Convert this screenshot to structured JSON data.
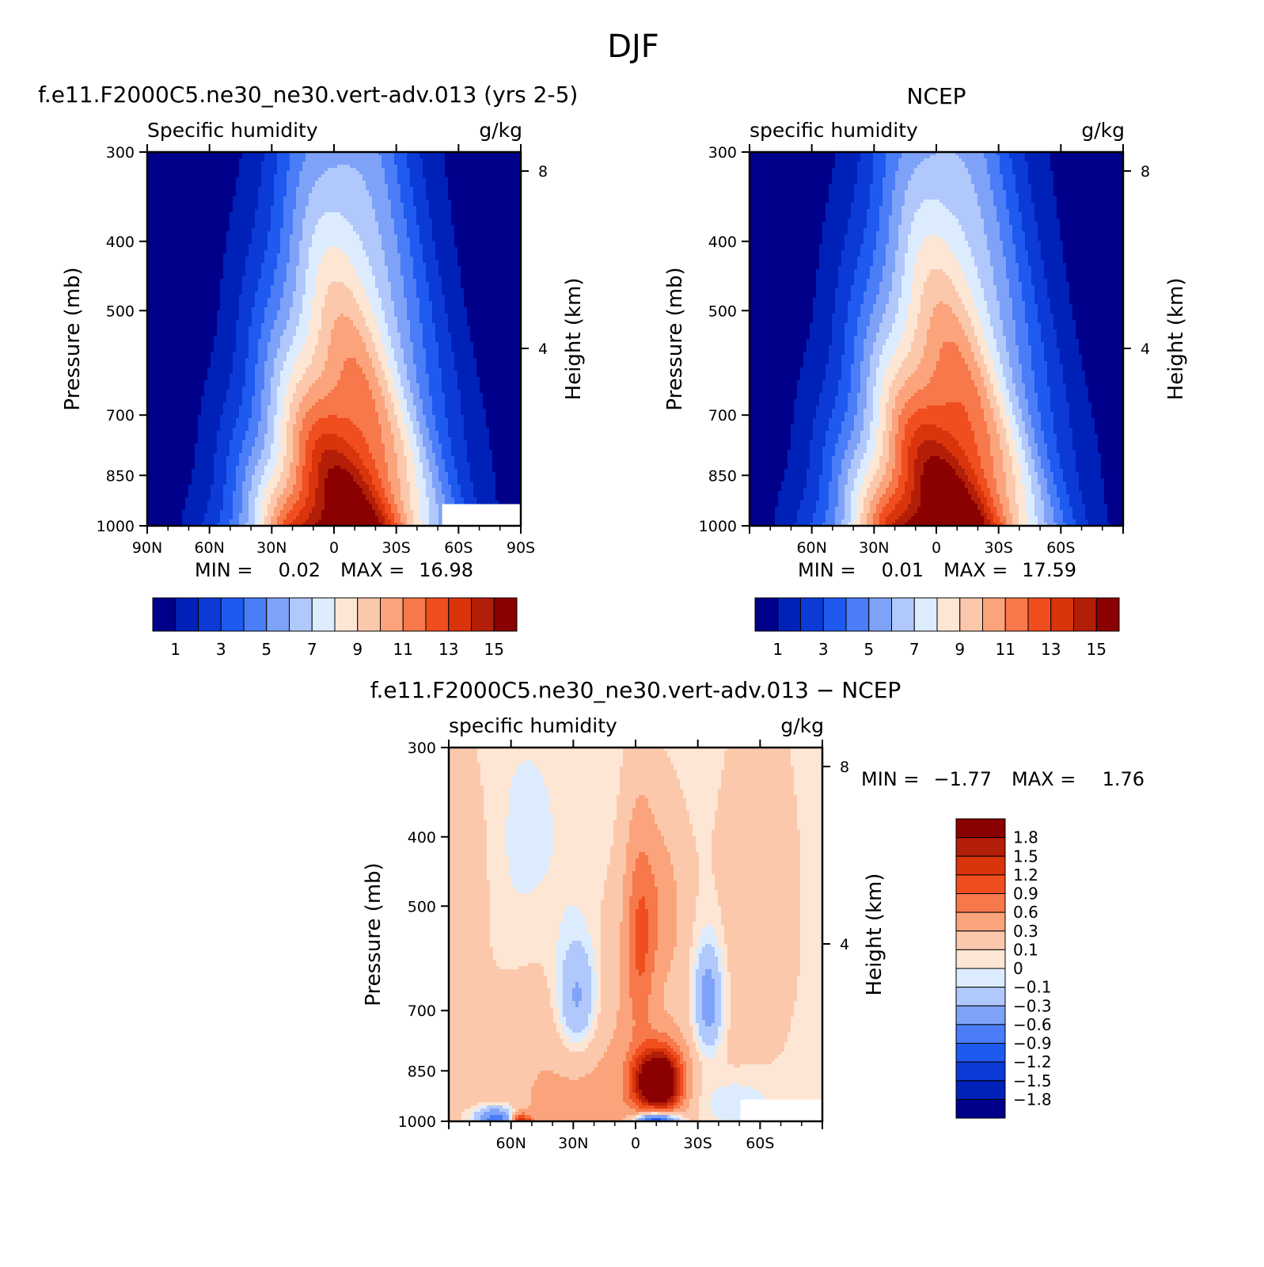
{
  "figure": {
    "title": "DJF"
  },
  "colors": {
    "abs_scale": [
      "#00008b",
      "#0021b8",
      "#0b3ad6",
      "#1e5af0",
      "#4a7df7",
      "#7fa2f9",
      "#b0c8fb",
      "#dcecfe",
      "#fde6d4",
      "#fcc8ac",
      "#fba47c",
      "#f7784a",
      "#f04e1f",
      "#d9340c",
      "#b31e08",
      "#8b0000"
    ],
    "diff_scale": [
      "#00008b",
      "#0021b8",
      "#0b3ad6",
      "#1e5af0",
      "#4a7df7",
      "#7fa2f9",
      "#b0c8fb",
      "#dcecfe",
      "#fde6d4",
      "#fcc8ac",
      "#fba47c",
      "#f7784a",
      "#f04e1f",
      "#d9340c",
      "#b31e08",
      "#8b0000"
    ]
  },
  "chart_data": [
    {
      "type": "heatmap",
      "title": "f.e11.F2000C5.ne30_ne30.vert-adv.013 (yrs 2-5)",
      "variable_label": "Specific humidity",
      "units": "g/kg",
      "xlabel": "",
      "ylabel": "Pressure (mb)",
      "ylabel_right": "Height (km)",
      "x_ticks": [
        "90N",
        "60N",
        "30N",
        "0",
        "30S",
        "60S",
        "90S"
      ],
      "y_ticks": [
        "300",
        "400",
        "500",
        "700",
        "850",
        "1000"
      ],
      "right_ticks": [
        "8",
        "4"
      ],
      "min_label": "MIN =",
      "min_value": "0.02",
      "max_label": "MAX =",
      "max_value": "16.98",
      "levels": [
        0,
        1,
        2,
        3,
        4,
        5,
        6,
        7,
        8,
        9,
        10,
        11,
        12,
        13,
        14,
        15,
        16
      ],
      "colorbar_labels": [
        "1",
        "3",
        "5",
        "7",
        "9",
        "11",
        "13",
        "15"
      ],
      "field": {
        "peak_lat": -4,
        "peak_value": 16.98,
        "base_halfwidth": 48,
        "scale_height": 0.9,
        "missing_region": {
          "lat_from": -52,
          "lat_to": -90,
          "p_from": 930,
          "p_to": 1000
        }
      },
      "lat_range": [
        90,
        -90
      ],
      "p_range": [
        300,
        1000
      ]
    },
    {
      "type": "heatmap",
      "title": "NCEP",
      "variable_label": "specific humidity",
      "units": "g/kg",
      "xlabel": "",
      "ylabel": "Pressure (mb)",
      "ylabel_right": "Height (km)",
      "x_ticks": [
        "60N",
        "30N",
        "0",
        "30S",
        "60S"
      ],
      "y_ticks": [
        "300",
        "400",
        "500",
        "700",
        "850",
        "1000"
      ],
      "right_ticks": [
        "8",
        "4"
      ],
      "min_label": "MIN =",
      "min_value": "0.01",
      "max_label": "MAX =",
      "max_value": "17.59",
      "levels": [
        0,
        1,
        2,
        3,
        4,
        5,
        6,
        7,
        8,
        9,
        10,
        11,
        12,
        13,
        14,
        15,
        16
      ],
      "colorbar_labels": [
        "1",
        "3",
        "5",
        "7",
        "9",
        "11",
        "13",
        "15"
      ],
      "field": {
        "peak_lat": -3,
        "peak_value": 17.59,
        "base_halfwidth": 50,
        "scale_height": 0.9
      },
      "lat_range": [
        90,
        -90
      ],
      "p_range": [
        300,
        1000
      ]
    },
    {
      "type": "heatmap",
      "title": "f.e11.F2000C5.ne30_ne30.vert-adv.013 − NCEP",
      "variable_label": "specific humidity",
      "units": "g/kg",
      "xlabel": "",
      "ylabel": "Pressure (mb)",
      "ylabel_right": "Height (km)",
      "x_ticks": [
        "60N",
        "30N",
        "0",
        "30S",
        "60S"
      ],
      "y_ticks": [
        "300",
        "400",
        "500",
        "700",
        "850",
        "1000"
      ],
      "right_ticks": [
        "8",
        "4"
      ],
      "min_label": "MIN =",
      "min_value": "−1.77",
      "max_label": "MAX =",
      "max_value": "1.76",
      "levels": [
        -2.1,
        -1.8,
        -1.5,
        -1.2,
        -0.9,
        -0.6,
        -0.3,
        -0.1,
        0,
        0.1,
        0.3,
        0.6,
        0.9,
        1.2,
        1.5,
        1.8,
        2.1
      ],
      "colorbar_labels": [
        "1.8",
        "1.5",
        "1.2",
        "0.9",
        "0.6",
        "0.3",
        "0.1",
        "0",
        "−0.1",
        "−0.3",
        "−0.6",
        "−0.9",
        "−1.2",
        "−1.5",
        "−1.8"
      ],
      "lat_range": [
        90,
        -90
      ],
      "p_range": [
        300,
        1000
      ],
      "field": {
        "missing_region": {
          "lat_from": -50,
          "lat_to": -90,
          "p_from": 935,
          "p_to": 1000
        }
      }
    }
  ]
}
